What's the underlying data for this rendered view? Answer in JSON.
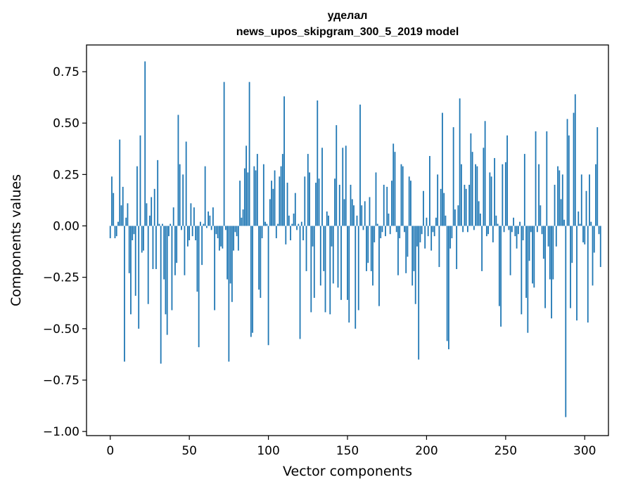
{
  "chart_data": {
    "type": "bar",
    "title": "уделал",
    "subtitle": "news_upos_skipgram_300_5_2019 model",
    "xlabel": "Vector components",
    "ylabel": "Components values",
    "xlim": [
      -15,
      315
    ],
    "ylim": [
      -1.02,
      0.88
    ],
    "xticks": [
      0,
      50,
      100,
      150,
      200,
      250,
      300
    ],
    "yticks": [
      -1.0,
      -0.75,
      -0.5,
      -0.25,
      0.0,
      0.25,
      0.5,
      0.75
    ],
    "xtick_labels": [
      "0",
      "50",
      "100",
      "150",
      "200",
      "250",
      "300"
    ],
    "ytick_labels": [
      "−1.00",
      "−0.75",
      "−0.50",
      "−0.25",
      "0.00",
      "0.25",
      "0.50",
      "0.75"
    ],
    "grid": false,
    "bar_color": "#1f77b4",
    "values": [
      -0.06,
      0.24,
      0.16,
      -0.06,
      -0.05,
      0.02,
      0.42,
      0.1,
      0.19,
      -0.66,
      0.04,
      0.11,
      -0.23,
      -0.43,
      -0.07,
      -0.04,
      -0.34,
      0.29,
      -0.5,
      0.44,
      -0.13,
      -0.12,
      0.8,
      0.11,
      -0.38,
      0.05,
      0.14,
      -0.21,
      0.18,
      -0.21,
      0.32,
      0.01,
      -0.67,
      0.01,
      -0.26,
      -0.43,
      -0.53,
      -0.05,
      0.01,
      -0.41,
      0.09,
      -0.24,
      -0.18,
      0.54,
      0.3,
      -0.02,
      0.25,
      -0.24,
      0.41,
      -0.1,
      -0.07,
      0.11,
      -0.05,
      0.09,
      -0.07,
      -0.32,
      -0.59,
      0.02,
      -0.19,
      0.01,
      0.29,
      -0.01,
      0.07,
      0.05,
      -0.02,
      0.09,
      -0.41,
      -0.04,
      -0.06,
      -0.12,
      -0.1,
      -0.11,
      0.7,
      -0.02,
      -0.26,
      -0.66,
      -0.28,
      -0.37,
      -0.12,
      -0.03,
      -0.05,
      -0.12,
      0.22,
      0.04,
      0.08,
      0.28,
      0.39,
      0.26,
      0.7,
      -0.54,
      -0.52,
      0.29,
      0.27,
      0.35,
      -0.31,
      -0.35,
      -0.06,
      0.3,
      0.02,
      0.01,
      -0.58,
      0.13,
      0.22,
      0.18,
      0.27,
      -0.06,
      0.01,
      0.24,
      0.29,
      0.35,
      0.63,
      -0.09,
      0.21,
      0.05,
      -0.07,
      0.01,
      0.06,
      0.16,
      -0.02,
      0.01,
      -0.55,
      0.02,
      -0.07,
      0.24,
      -0.22,
      0.35,
      0.26,
      -0.42,
      -0.1,
      -0.35,
      0.21,
      0.61,
      0.23,
      -0.29,
      0.38,
      -0.22,
      -0.42,
      0.07,
      0.05,
      -0.43,
      -0.1,
      -0.28,
      0.23,
      0.49,
      -0.3,
      0.2,
      -0.36,
      0.38,
      0.13,
      0.39,
      -0.36,
      -0.47,
      0.2,
      0.13,
      0.1,
      -0.5,
      0.05,
      -0.41,
      0.59,
      0.1,
      -0.02,
      0.12,
      -0.22,
      -0.18,
      0.14,
      -0.22,
      -0.29,
      -0.08,
      0.26,
      0.01,
      -0.39,
      -0.06,
      -0.03,
      0.2,
      -0.05,
      0.19,
      0.06,
      -0.04,
      0.22,
      0.4,
      0.36,
      -0.03,
      -0.24,
      -0.06,
      0.3,
      0.29,
      -0.03,
      -0.23,
      -0.15,
      0.24,
      0.22,
      -0.29,
      -0.22,
      -0.38,
      -0.1,
      -0.65,
      -0.08,
      -0.04,
      0.17,
      -0.11,
      0.04,
      -0.05,
      0.34,
      -0.12,
      -0.03,
      -0.05,
      0.04,
      0.25,
      -0.2,
      0.18,
      0.55,
      0.16,
      0.05,
      -0.56,
      -0.6,
      -0.11,
      -0.06,
      0.48,
      0.08,
      -0.21,
      0.1,
      0.62,
      0.3,
      -0.03,
      0.2,
      0.18,
      -0.03,
      0.2,
      0.45,
      0.36,
      -0.02,
      0.3,
      0.29,
      0.12,
      0.06,
      -0.22,
      0.38,
      0.51,
      -0.05,
      -0.04,
      0.26,
      0.24,
      -0.08,
      0.33,
      0.05,
      0.01,
      -0.39,
      -0.49,
      0.3,
      -0.03,
      0.31,
      0.44,
      -0.02,
      -0.24,
      -0.03,
      0.04,
      -0.05,
      -0.11,
      -0.04,
      0.02,
      -0.43,
      -0.07,
      0.35,
      -0.35,
      -0.52,
      -0.17,
      -0.03,
      -0.28,
      -0.3,
      0.46,
      -0.03,
      0.3,
      0.1,
      -0.04,
      -0.16,
      -0.4,
      0.46,
      -0.1,
      -0.26,
      -0.45,
      -0.26,
      0.2,
      -0.1,
      0.29,
      0.27,
      0.13,
      0.25,
      0.03,
      -0.93,
      0.52,
      0.44,
      -0.4,
      -0.18,
      0.55,
      0.64,
      -0.46,
      0.07,
      0.01,
      0.25,
      -0.08,
      -0.09,
      0.17,
      -0.47,
      0.25,
      0.02,
      -0.29,
      -0.13,
      0.3,
      0.48,
      -0.04,
      -0.2
    ]
  }
}
